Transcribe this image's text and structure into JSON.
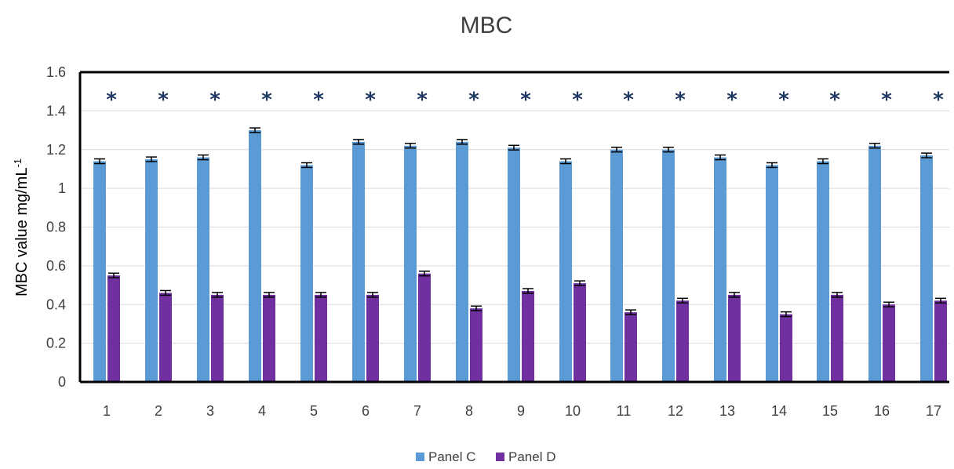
{
  "chart_data": {
    "type": "bar",
    "title": "MBC",
    "ylabel_main": "MBC value mg/mL",
    "ylabel_sup": "-1",
    "xlabel": "",
    "ylim": [
      0,
      1.6
    ],
    "yticks": [
      0,
      0.2,
      0.4,
      0.6,
      0.8,
      1,
      1.2,
      1.4,
      1.6
    ],
    "ytick_labels": [
      "0",
      "0.2",
      "0.4",
      "0.6",
      "0.8",
      "1",
      "1.2",
      "1.4",
      "1.6"
    ],
    "categories": [
      "1",
      "2",
      "3",
      "4",
      "5",
      "6",
      "7",
      "8",
      "9",
      "10",
      "11",
      "12",
      "13",
      "14",
      "15",
      "16",
      "17"
    ],
    "series": [
      {
        "name": "Panel C",
        "color": "#5b9bd5",
        "values": [
          1.14,
          1.15,
          1.16,
          1.3,
          1.12,
          1.24,
          1.22,
          1.24,
          1.21,
          1.14,
          1.2,
          1.2,
          1.16,
          1.12,
          1.14,
          1.22,
          1.17
        ],
        "errors": [
          0.012,
          0.012,
          0.012,
          0.012,
          0.012,
          0.012,
          0.012,
          0.012,
          0.012,
          0.012,
          0.012,
          0.012,
          0.012,
          0.012,
          0.012,
          0.012,
          0.012
        ]
      },
      {
        "name": "Panel D",
        "color": "#7030a0",
        "values": [
          0.55,
          0.46,
          0.45,
          0.45,
          0.45,
          0.45,
          0.56,
          0.38,
          0.47,
          0.51,
          0.36,
          0.42,
          0.45,
          0.35,
          0.45,
          0.4,
          0.42
        ],
        "errors": [
          0.012,
          0.012,
          0.012,
          0.012,
          0.012,
          0.012,
          0.012,
          0.012,
          0.012,
          0.012,
          0.012,
          0.012,
          0.012,
          0.012,
          0.012,
          0.012,
          0.012
        ]
      }
    ],
    "significance_marker": "*",
    "significance_value": 1.48,
    "significance_color": "#1f3864",
    "grid": true,
    "legend_position": "bottom-center",
    "axis_color": "#000000",
    "grid_color": "#d9d9d9"
  }
}
